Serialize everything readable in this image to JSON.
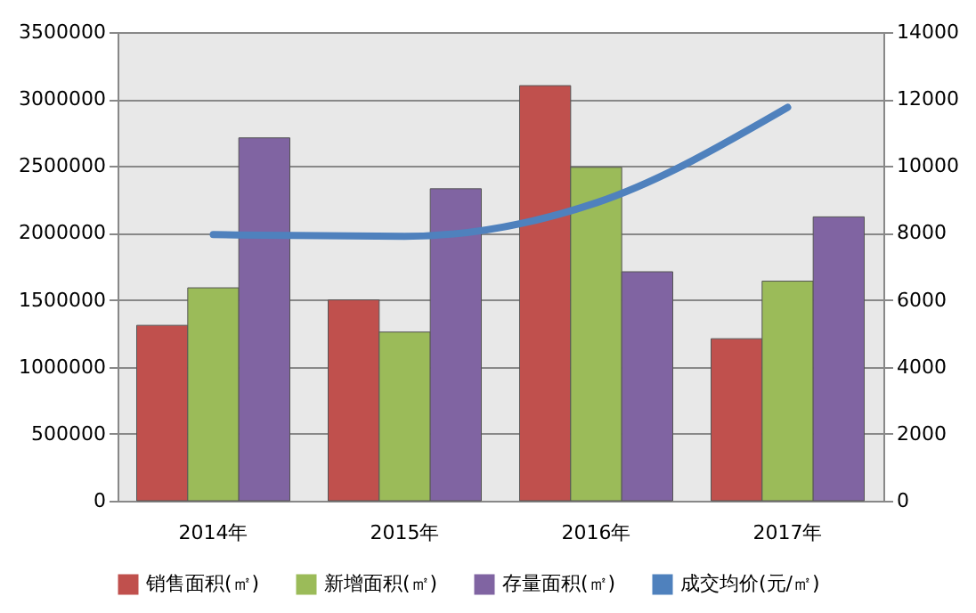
{
  "chart_data": {
    "type": "bar",
    "categories": [
      "2014年",
      "2015年",
      "2016年",
      "2017年"
    ],
    "series": [
      {
        "name": "销售面积(㎡)",
        "color": "#c0504d",
        "values": [
          1310000,
          1500000,
          3100000,
          1210000
        ]
      },
      {
        "name": "新增面积(㎡)",
        "color": "#9bbb59",
        "values": [
          1590000,
          1260000,
          2490000,
          1640000
        ]
      },
      {
        "name": "存量面积(㎡)",
        "color": "#8064a2",
        "values": [
          2710000,
          2330000,
          1710000,
          2120000
        ]
      },
      {
        "name": "成交均价(元/㎡)",
        "color": "#4f81bd",
        "type": "line",
        "axis": "y2",
        "values": [
          7950,
          7900,
          8900,
          11750
        ]
      }
    ],
    "ylim": [
      0,
      3500000
    ],
    "yticks": [
      0,
      500000,
      1000000,
      1500000,
      2000000,
      2500000,
      3000000,
      3500000
    ],
    "y2lim": [
      0,
      14000
    ],
    "y2ticks": [
      0,
      2000,
      4000,
      6000,
      8000,
      10000,
      12000,
      14000
    ],
    "grid": "y",
    "legend": "bottom",
    "marker": "none",
    "line_style": "solid"
  }
}
